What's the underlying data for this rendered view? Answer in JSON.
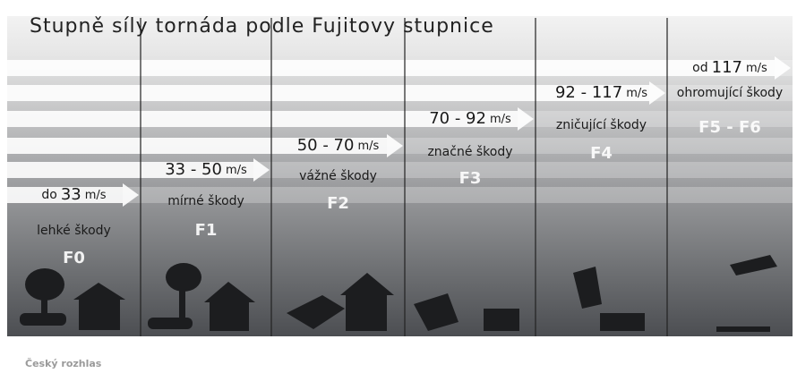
{
  "title": "Stupně síly tornáda podle Fujitovy stupnice",
  "columns": [
    {
      "prefix": "do",
      "speed": "33",
      "unit": "m/s",
      "damage": "lehké škody",
      "label": "F0"
    },
    {
      "speed": "33 - 50",
      "unit": "m/s",
      "damage": "mírné škody",
      "label": "F1"
    },
    {
      "speed": "50 - 70",
      "unit": "m/s",
      "damage": "vážné škody",
      "label": "F2"
    },
    {
      "speed": "70 - 92",
      "unit": "m/s",
      "damage": "značné škody",
      "label": "F3"
    },
    {
      "speed": "92 - 117",
      "unit": "m/s",
      "damage": "zničující škody",
      "label": "F4"
    },
    {
      "prefix": "od",
      "speed": "117",
      "unit": "m/s",
      "damage": "ohromující škody",
      "label": "F5 - F6"
    }
  ],
  "footer": "Český rozhlas"
}
